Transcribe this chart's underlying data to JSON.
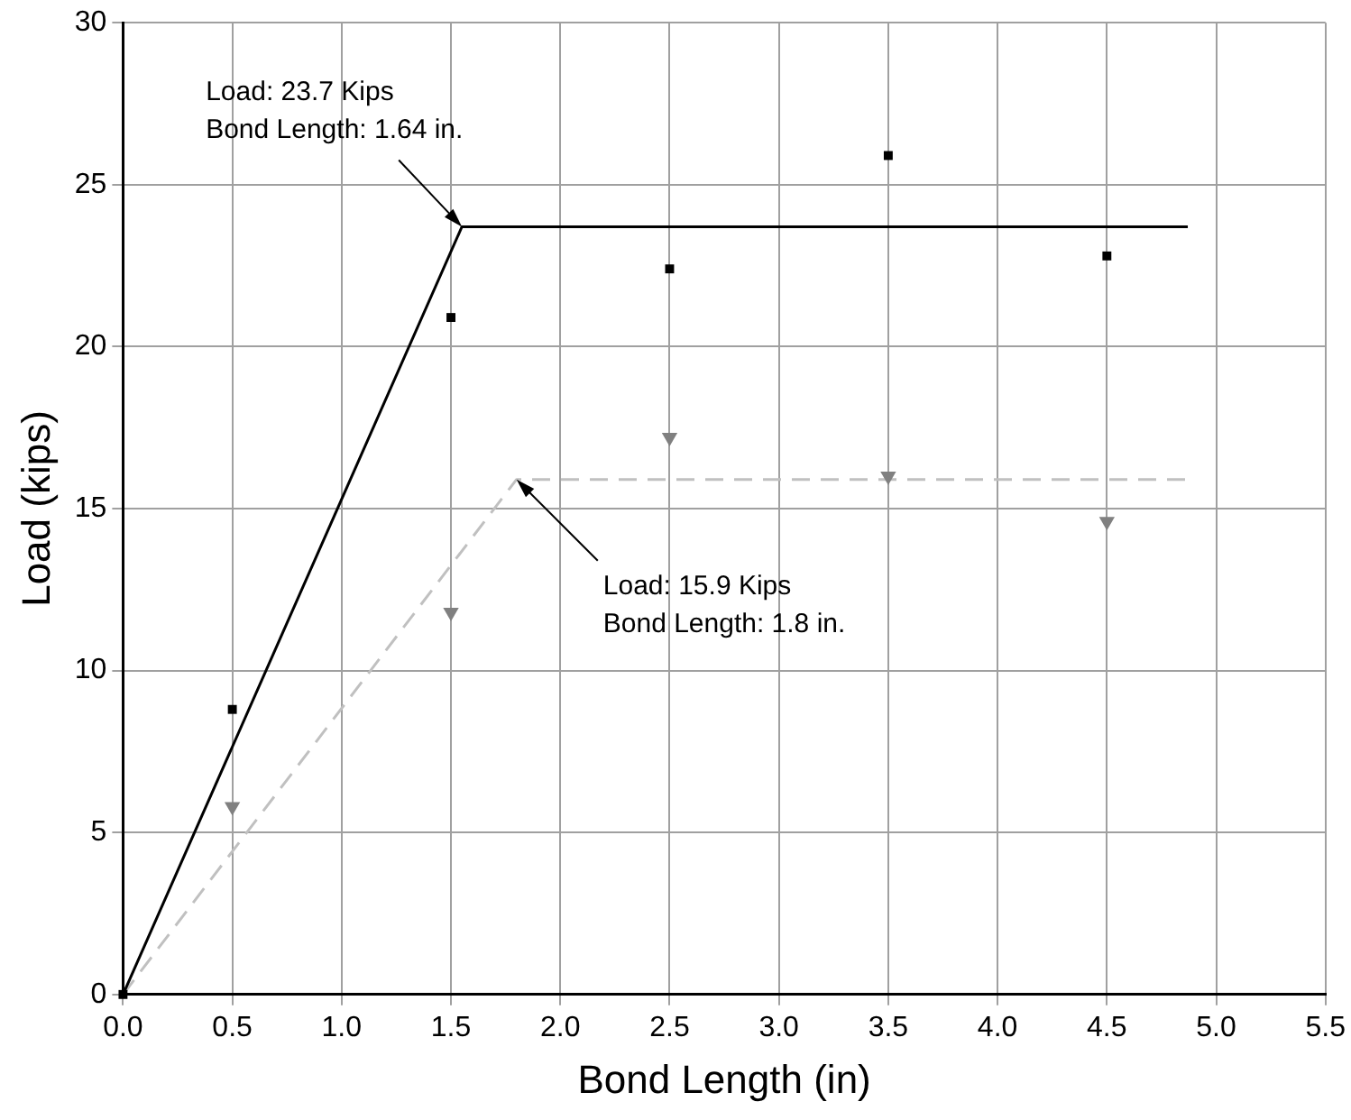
{
  "chart_data": {
    "type": "scatter",
    "xlabel": "Bond Length (in)",
    "ylabel": "Load (kips)",
    "series": [
      {
        "type": "scatter",
        "color": "#808080",
        "marker": "triangle",
        "x": [
          0.5,
          1.5,
          2.5,
          3.5,
          4.5
        ],
        "values": [
          5.8,
          11.8,
          17.2,
          16.0,
          14.6
        ]
      },
      {
        "type": "scatter",
        "color": "#000000",
        "marker": "square",
        "x": [
          0,
          0.5,
          1.5,
          2.5,
          3.5,
          4.5
        ],
        "values": [
          0,
          8.8,
          20.9,
          22.4,
          25.9,
          22.8
        ]
      },
      {
        "type": "line",
        "color": "#000000",
        "line_style": "solid",
        "marker": "none",
        "x": [
          0,
          1.55,
          4.87
        ],
        "values": [
          0,
          23.7,
          23.7
        ]
      },
      {
        "type": "line",
        "color": "#c0c0c0",
        "line_style": "dashed",
        "marker": "none",
        "x": [
          0,
          1.8,
          4.87
        ],
        "values": [
          0,
          15.9,
          15.9
        ]
      }
    ],
    "xlim": [
      0,
      5.5
    ],
    "xticks": [
      {
        "value": 0,
        "label": "0.0"
      },
      {
        "value": 0.5,
        "label": "0.5"
      },
      {
        "value": 1,
        "label": "1.0"
      },
      {
        "value": 1.5,
        "label": "1.5"
      },
      {
        "value": 2,
        "label": "2.0"
      },
      {
        "value": 2.5,
        "label": "2.5"
      },
      {
        "value": 3,
        "label": "3.0"
      },
      {
        "value": 3.5,
        "label": "3.5"
      },
      {
        "value": 4,
        "label": "4.0"
      },
      {
        "value": 4.5,
        "label": "4.5"
      },
      {
        "value": 5,
        "label": "5.0"
      },
      {
        "value": 5.5,
        "label": "5.5"
      }
    ],
    "ylim": [
      0,
      30
    ],
    "yticks": [
      0,
      5,
      10,
      15,
      20,
      25,
      30
    ],
    "grid": true,
    "annotations": [
      {
        "text": "Load: 23.7 Kips\nBond Length: 1.64 in.",
        "x": 1.55,
        "y": 23.7
      },
      {
        "text": "Load: 15.9 Kips\nBond Length: 1.8 in.",
        "x": 1.8,
        "y": 15.9
      }
    ]
  }
}
